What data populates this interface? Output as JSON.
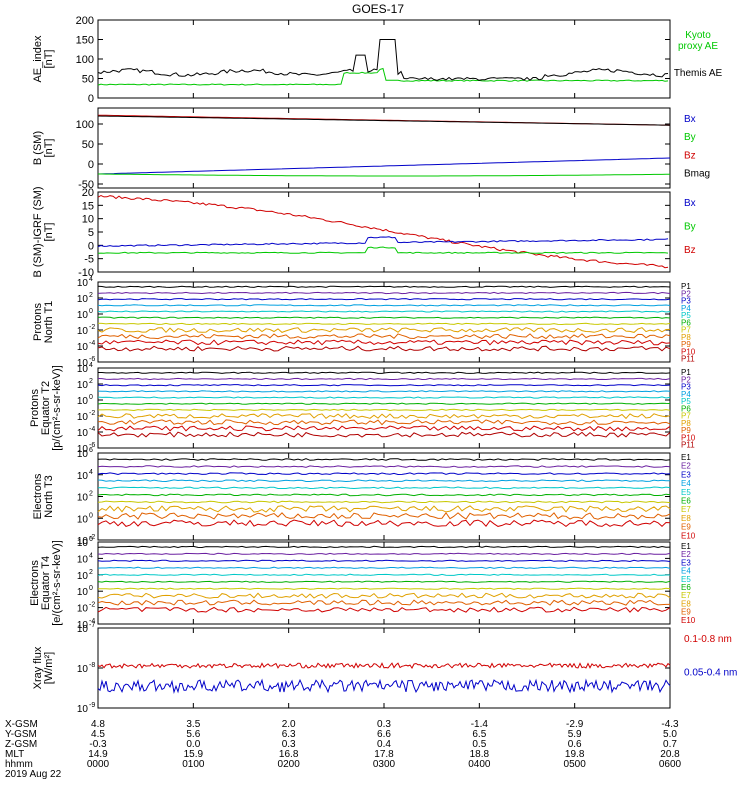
{
  "title": "GOES-17",
  "colors": {
    "black": "#000000",
    "red": "#d00000",
    "green": "#00c800",
    "blue": "#0000c8"
  },
  "chart_data": [
    {
      "type": "line",
      "name": "ae",
      "ylabel": [
        "AE_index",
        "[nT]"
      ],
      "ylim": [
        0,
        200
      ],
      "yticks": [
        0,
        50,
        100,
        150,
        200
      ],
      "series": [
        {
          "name": "Kyoto proxy AE",
          "color": "#00c800",
          "legend_lines": [
            "Kyoto",
            "proxy AE"
          ]
        },
        {
          "name": "Themis AE",
          "color": "#000000",
          "legend_lines": [
            "Themis AE"
          ]
        }
      ]
    },
    {
      "type": "line",
      "name": "bsm",
      "ylabel": [
        "B (SM)",
        "[nT]"
      ],
      "ylim": [
        -60,
        140
      ],
      "yticks": [
        -50,
        0,
        50,
        100
      ],
      "series": [
        {
          "name": "Bx",
          "color": "#0000c8"
        },
        {
          "name": "By",
          "color": "#00c800"
        },
        {
          "name": "Bz",
          "color": "#d00000"
        },
        {
          "name": "Bmag",
          "color": "#000000"
        }
      ]
    },
    {
      "type": "line",
      "name": "bigrf",
      "ylabel": [
        "B (SM)-IGRF (SM)",
        "[nT]"
      ],
      "ylim": [
        -10,
        20
      ],
      "yticks": [
        -10,
        -5,
        0,
        5,
        10,
        15,
        20
      ],
      "series": [
        {
          "name": "Bx",
          "color": "#0000c8"
        },
        {
          "name": "By",
          "color": "#00c800"
        },
        {
          "name": "Bz",
          "color": "#d00000"
        }
      ]
    },
    {
      "type": "line",
      "name": "protons-t1",
      "log": true,
      "ylabel": [
        "Protons",
        "North T1"
      ],
      "ylim_exp": [
        -6,
        4
      ],
      "yticks_exp": [
        -6,
        -4,
        -2,
        0,
        2,
        4
      ],
      "legend": [
        "P1",
        "P2",
        "P3",
        "P4",
        "P5",
        "P6",
        "P7",
        "P8",
        "P9",
        "P10",
        "P11"
      ]
    },
    {
      "type": "line",
      "name": "protons-t2",
      "log": true,
      "ylabel": [
        "Protons",
        "Equator T2",
        "[p/(cm²-s-sr-keV)]"
      ],
      "ylim_exp": [
        -6,
        4
      ],
      "yticks_exp": [
        -6,
        -4,
        -2,
        0,
        2,
        4
      ],
      "legend": [
        "P1",
        "P2",
        "P3",
        "P4",
        "P5",
        "P6",
        "P7",
        "P8",
        "P9",
        "P10",
        "P11"
      ]
    },
    {
      "type": "line",
      "name": "electrons-t3",
      "log": true,
      "ylabel": [
        "Electrons",
        "North T3"
      ],
      "ylim_exp": [
        -2,
        6
      ],
      "yticks_exp": [
        -2,
        0,
        2,
        4,
        6
      ],
      "legend": [
        "E1",
        "E2",
        "E3",
        "E4",
        "E5",
        "E6",
        "E7",
        "E8",
        "E9",
        "E10"
      ]
    },
    {
      "type": "line",
      "name": "electrons-t4",
      "log": true,
      "ylabel": [
        "Electrons",
        "Equator T4",
        "[e/(cm²-s-sr-keV)]"
      ],
      "ylim_exp": [
        -4,
        6
      ],
      "yticks_exp": [
        -4,
        -2,
        0,
        2,
        4,
        6
      ],
      "legend": [
        "E1",
        "E2",
        "E3",
        "E4",
        "E5",
        "E6",
        "E7",
        "E8",
        "E9",
        "E10"
      ]
    },
    {
      "type": "line",
      "name": "xray",
      "log": true,
      "ylabel": [
        "Xray flux",
        "[W/m²]"
      ],
      "ylim_exp": [
        -9,
        -7
      ],
      "yticks_exp": [
        -9,
        -8,
        -7
      ],
      "series": [
        {
          "name": "0.1-0.8 nm",
          "color": "#d00000"
        },
        {
          "name": "0.05-0.4 nm",
          "color": "#0000c8"
        }
      ]
    }
  ],
  "time_axis": {
    "labels": [
      "X-GSM",
      "Y-GSM",
      "Z-GSM",
      "MLT",
      "hhmm"
    ],
    "rows": [
      [
        "4.8",
        "3.5",
        "2.0",
        "0.3",
        "-1.4",
        "-2.9",
        "-4.3"
      ],
      [
        "4.5",
        "5.6",
        "6.3",
        "6.6",
        "6.5",
        "5.9",
        "5.0"
      ],
      [
        "-0.3",
        "0.0",
        "0.3",
        "0.4",
        "0.5",
        "0.6",
        "0.7"
      ],
      [
        "14.9",
        "15.9",
        "16.8",
        "17.8",
        "18.8",
        "19.8",
        "20.8"
      ],
      [
        "0000",
        "0100",
        "0200",
        "0300",
        "0400",
        "0500",
        "0600"
      ]
    ],
    "date": "2019 Aug 22"
  }
}
